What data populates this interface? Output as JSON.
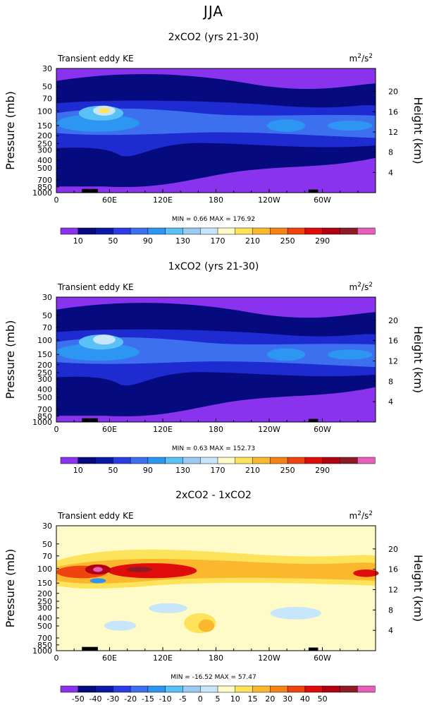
{
  "page_title": "JJA",
  "chart_data": [
    {
      "type": "heatmap",
      "title": "2xCO2 (yrs 21-30)",
      "subtitle_left": "Transient eddy KE",
      "unit_base": "m",
      "unit_exp1": "2",
      "unit_mid": "/s",
      "unit_exp2": "2",
      "ylabel": "Pressure (mb)",
      "ylabel_right": "Height (km)",
      "xticks": [
        "0",
        "60E",
        "120E",
        "180",
        "120W",
        "60W"
      ],
      "yticks": [
        "30",
        "50",
        "70",
        "100",
        "150",
        "200",
        "250",
        "300",
        "400",
        "500",
        "700",
        "850",
        "1000"
      ],
      "yticks_right": [
        "20",
        "16",
        "12",
        "8",
        "4"
      ],
      "stats": "MIN =   0.66   MAX = 176.92",
      "min": 0.66,
      "max": 176.92,
      "colorbar_labels": [
        "10",
        "50",
        "90",
        "130",
        "170",
        "210",
        "250",
        "290"
      ],
      "levels": [
        10,
        30,
        50,
        70,
        90,
        110,
        130,
        150,
        170,
        190,
        210,
        230,
        250,
        270,
        290
      ]
    },
    {
      "type": "heatmap",
      "title": "1xCO2 (yrs 21-30)",
      "subtitle_left": "Transient eddy KE",
      "unit_base": "m",
      "unit_exp1": "2",
      "unit_mid": "/s",
      "unit_exp2": "2",
      "ylabel": "Pressure (mb)",
      "ylabel_right": "Height (km)",
      "xticks": [
        "0",
        "60E",
        "120E",
        "180",
        "120W",
        "60W"
      ],
      "yticks": [
        "30",
        "50",
        "70",
        "100",
        "150",
        "200",
        "250",
        "300",
        "400",
        "500",
        "700",
        "850",
        "1000"
      ],
      "yticks_right": [
        "20",
        "16",
        "12",
        "8",
        "4"
      ],
      "stats": "MIN =   0.63   MAX = 152.73",
      "min": 0.63,
      "max": 152.73,
      "colorbar_labels": [
        "10",
        "50",
        "90",
        "130",
        "170",
        "210",
        "250",
        "290"
      ],
      "levels": [
        10,
        30,
        50,
        70,
        90,
        110,
        130,
        150,
        170,
        190,
        210,
        230,
        250,
        270,
        290
      ]
    },
    {
      "type": "heatmap",
      "title": "2xCO2 - 1xCO2",
      "subtitle_left": "Transient eddy KE",
      "unit_base": "m",
      "unit_exp1": "2",
      "unit_mid": "/s",
      "unit_exp2": "2",
      "ylabel": "Pressure (mb)",
      "ylabel_right": "Height (km)",
      "xticks": [
        "0",
        "60E",
        "120E",
        "180",
        "120W",
        "60W"
      ],
      "yticks": [
        "30",
        "50",
        "70",
        "100",
        "150",
        "200",
        "250",
        "300",
        "400",
        "500",
        "700",
        "850",
        "1000"
      ],
      "yticks_right": [
        "20",
        "16",
        "12",
        "8",
        "4"
      ],
      "stats": "MIN = -16.52   MAX =  57.47",
      "min": -16.52,
      "max": 57.47,
      "colorbar_labels": [
        "-50",
        "-40",
        "-30",
        "-20",
        "-15",
        "-10",
        "-5",
        "0",
        "5",
        "10",
        "15",
        "20",
        "30",
        "40",
        "50"
      ],
      "levels": [
        -50,
        -40,
        -30,
        -20,
        -15,
        -10,
        -5,
        0,
        5,
        10,
        15,
        20,
        30,
        40,
        50
      ]
    }
  ],
  "colors": {
    "abs_scale": [
      "#8a33ef",
      "#060a7f",
      "#0b1aa6",
      "#2c3ce3",
      "#3d70ee",
      "#2d95f2",
      "#5ac1f7",
      "#9ccaf0",
      "#c7e6fb",
      "#fffbc8",
      "#fde35a",
      "#fbb72e",
      "#f58214",
      "#f04410",
      "#e00b0b",
      "#b00012",
      "#8d1a24",
      "#e65fb8"
    ],
    "diff_scale": [
      "#8a33ef",
      "#060a7f",
      "#0b1aa6",
      "#2c3ce3",
      "#3d70ee",
      "#2d95f2",
      "#5ac1f7",
      "#9ccaf0",
      "#c7e6fb",
      "#fffbc8",
      "#fde35a",
      "#fbb72e",
      "#f58214",
      "#f04410",
      "#e00b0b",
      "#b00012",
      "#8d1a24",
      "#e65fb8"
    ]
  }
}
